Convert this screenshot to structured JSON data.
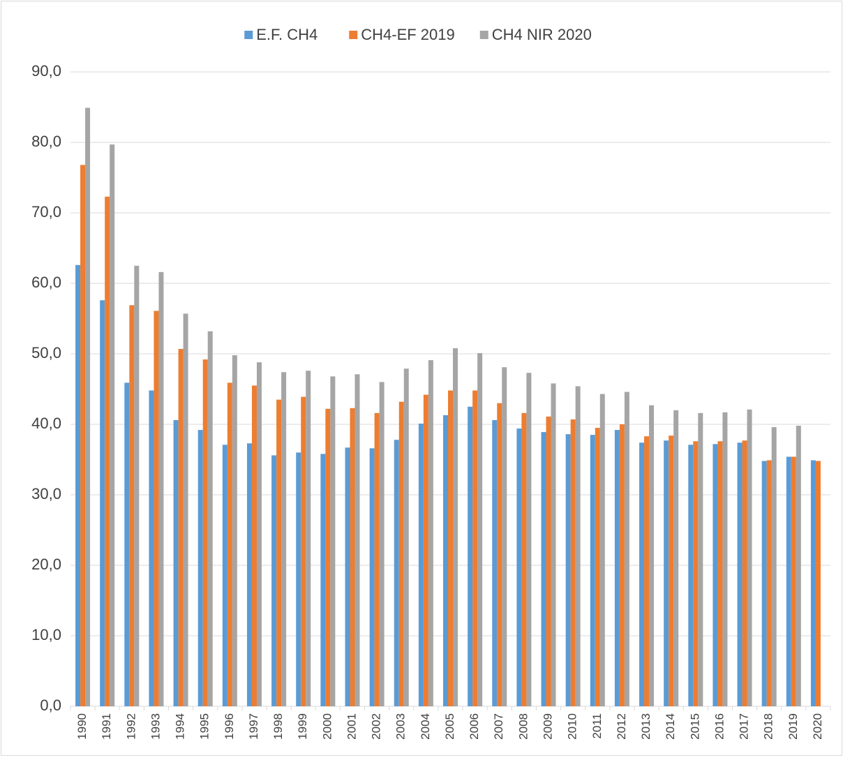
{
  "chart_data": {
    "type": "bar",
    "categories": [
      "1990",
      "1991",
      "1992",
      "1993",
      "1994",
      "1995",
      "1996",
      "1997",
      "1998",
      "1999",
      "2000",
      "2001",
      "2002",
      "2003",
      "2004",
      "2005",
      "2006",
      "2007",
      "2008",
      "2009",
      "2010",
      "2011",
      "2012",
      "2013",
      "2014",
      "2015",
      "2016",
      "2017",
      "2018",
      "2019",
      "2020"
    ],
    "series": [
      {
        "name": "E.F. CH4",
        "color": "#5b9bd5",
        "values": [
          62.6,
          57.6,
          45.9,
          44.8,
          40.6,
          39.2,
          37.1,
          37.3,
          35.6,
          36.0,
          35.8,
          36.7,
          36.6,
          37.8,
          40.1,
          41.3,
          42.5,
          40.6,
          39.4,
          38.9,
          38.6,
          38.5,
          39.2,
          37.4,
          37.7,
          37.1,
          37.2,
          37.4,
          34.8,
          35.4,
          34.9
        ]
      },
      {
        "name": "CH4-EF 2019",
        "color": "#ed7d31",
        "values": [
          76.8,
          72.3,
          56.9,
          56.1,
          50.7,
          49.2,
          45.9,
          45.5,
          43.5,
          43.9,
          42.2,
          42.3,
          41.6,
          43.2,
          44.2,
          44.8,
          44.8,
          43.0,
          41.6,
          41.1,
          40.7,
          39.5,
          40.0,
          38.3,
          38.4,
          37.6,
          37.6,
          37.7,
          34.9,
          35.4,
          34.8
        ]
      },
      {
        "name": "CH4 NIR 2020",
        "color": "#a5a5a5",
        "values": [
          84.9,
          79.7,
          62.5,
          61.6,
          55.7,
          53.2,
          49.8,
          48.8,
          47.4,
          47.6,
          46.8,
          47.1,
          46.0,
          47.9,
          49.1,
          50.8,
          50.1,
          48.1,
          47.3,
          45.8,
          45.4,
          44.3,
          44.6,
          42.7,
          42.0,
          41.6,
          41.7,
          42.1,
          39.6,
          39.8,
          null
        ]
      }
    ],
    "ylim": [
      0,
      90
    ],
    "yticks": [
      {
        "value": 0,
        "label": "0,0"
      },
      {
        "value": 10,
        "label": "10,0"
      },
      {
        "value": 20,
        "label": "20,0"
      },
      {
        "value": 30,
        "label": "30,0"
      },
      {
        "value": 40,
        "label": "40,0"
      },
      {
        "value": 50,
        "label": "50,0"
      },
      {
        "value": 60,
        "label": "60,0"
      },
      {
        "value": 70,
        "label": "70,0"
      },
      {
        "value": 80,
        "label": "80,0"
      },
      {
        "value": 90,
        "label": "90,0"
      }
    ],
    "grid": true,
    "legend": "top"
  }
}
